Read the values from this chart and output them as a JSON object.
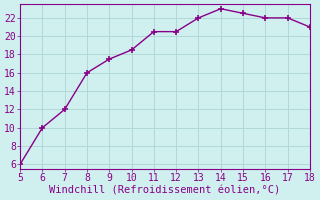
{
  "x": [
    5,
    6,
    7,
    8,
    9,
    10,
    11,
    12,
    13,
    14,
    15,
    16,
    17,
    18
  ],
  "y": [
    6.0,
    10.0,
    12.0,
    16.0,
    17.5,
    18.5,
    20.5,
    20.5,
    22.0,
    23.0,
    22.5,
    22.0,
    22.0,
    21.0
  ],
  "line_color": "#880088",
  "marker": "+",
  "marker_size": 4,
  "marker_lw": 1.2,
  "line_width": 1.0,
  "bg_color": "#d0f0f0",
  "grid_color": "#b0d8d8",
  "xlabel": "Windchill (Refroidissement éolien,°C)",
  "xlabel_color": "#880088",
  "tick_color": "#880088",
  "xlim": [
    5,
    18
  ],
  "ylim": [
    5.5,
    23.5
  ],
  "xticks": [
    5,
    6,
    7,
    8,
    9,
    10,
    11,
    12,
    13,
    14,
    15,
    16,
    17,
    18
  ],
  "yticks": [
    6,
    8,
    10,
    12,
    14,
    16,
    18,
    20,
    22
  ],
  "xlabel_fontsize": 7.5,
  "tick_fontsize": 7
}
